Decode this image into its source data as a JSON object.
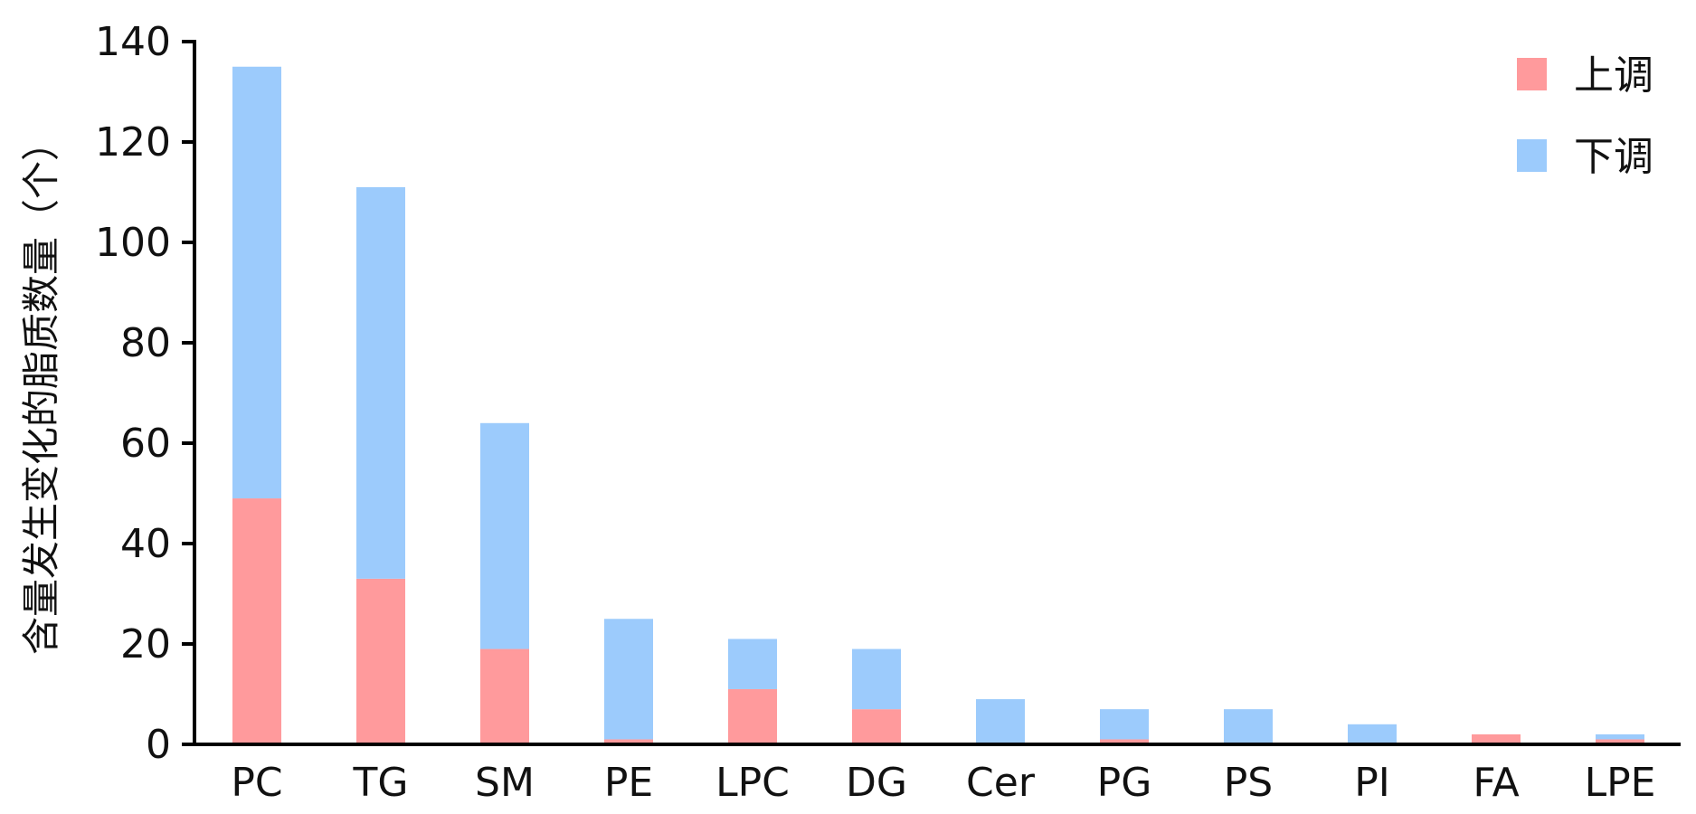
{
  "chart_data": {
    "type": "bar",
    "stacked": true,
    "ylabel": "含量发生变化的脂质数量（个）",
    "xlabel": "",
    "title": "",
    "ylim": [
      0,
      140
    ],
    "yticks": [
      0,
      20,
      40,
      60,
      80,
      100,
      120,
      140
    ],
    "grid": false,
    "legend_position": "top-right",
    "categories": [
      "PC",
      "TG",
      "SM",
      "PE",
      "LPC",
      "DG",
      "Cer",
      "PG",
      "PS",
      "PI",
      "FA",
      "LPE"
    ],
    "series": [
      {
        "name": "上调",
        "color": "#ff9a9c",
        "values": [
          49,
          33,
          19,
          1,
          11,
          7,
          0,
          1,
          0,
          0,
          2,
          1
        ]
      },
      {
        "name": "下调",
        "color": "#9ccbfc",
        "values": [
          86,
          78,
          45,
          24,
          10,
          12,
          9,
          6,
          7,
          4,
          0,
          1
        ]
      }
    ]
  }
}
